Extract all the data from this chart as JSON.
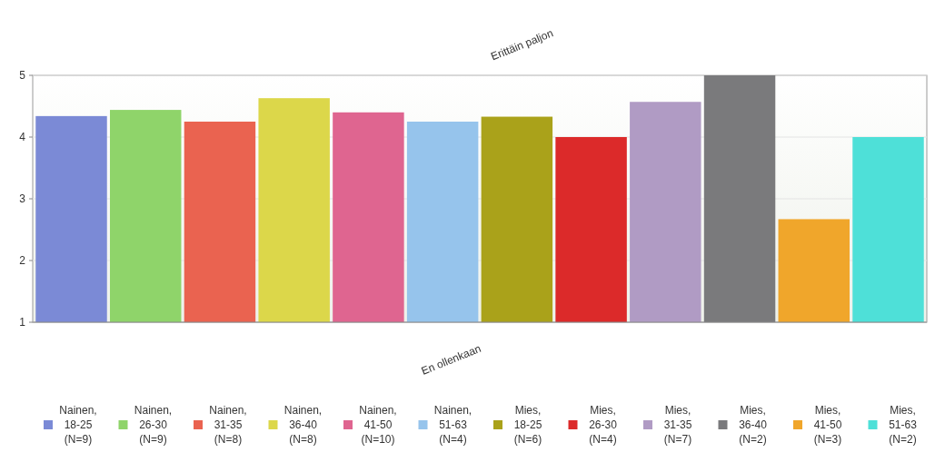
{
  "chart_data": {
    "type": "bar",
    "categories": [
      null
    ],
    "ylim": [
      1,
      5
    ],
    "yticks": [
      1,
      2,
      3,
      4,
      5
    ],
    "grid": "y",
    "legend": "bottom",
    "annotations": [
      "Erittäin paljon",
      "En ollenkaan"
    ],
    "series": [
      {
        "name": "Nainen, 18-25 (N=9)",
        "color": "#7b8ad6",
        "values": [
          4.34
        ]
      },
      {
        "name": "Nainen, 26-30 (N=9)",
        "color": "#8fd46a",
        "values": [
          4.44
        ]
      },
      {
        "name": "Nainen, 31-35 (N=8)",
        "color": "#ea6350",
        "values": [
          4.25
        ]
      },
      {
        "name": "Nainen, 36-40 (N=8)",
        "color": "#dcd74a",
        "values": [
          4.63
        ]
      },
      {
        "name": "Nainen, 41-50 (N=10)",
        "color": "#df6590",
        "values": [
          4.4
        ]
      },
      {
        "name": "Nainen, 51-63 (N=4)",
        "color": "#96c4ec",
        "values": [
          4.25
        ]
      },
      {
        "name": "Mies, 18-25 (N=6)",
        "color": "#aaa21a",
        "values": [
          4.33
        ]
      },
      {
        "name": "Mies, 26-30 (N=4)",
        "color": "#dc2a2a",
        "values": [
          4.0
        ]
      },
      {
        "name": "Mies, 31-35 (N=7)",
        "color": "#b09bc4",
        "values": [
          4.57
        ]
      },
      {
        "name": "Mies, 36-40 (N=2)",
        "color": "#7a7a7c",
        "values": [
          5.0
        ]
      },
      {
        "name": "Mies, 41-50 (N=3)",
        "color": "#f0a62b",
        "values": [
          2.67
        ]
      },
      {
        "name": "Mies, 51-63 (N=2)",
        "color": "#4ee0d8",
        "values": [
          4.0
        ]
      }
    ]
  }
}
